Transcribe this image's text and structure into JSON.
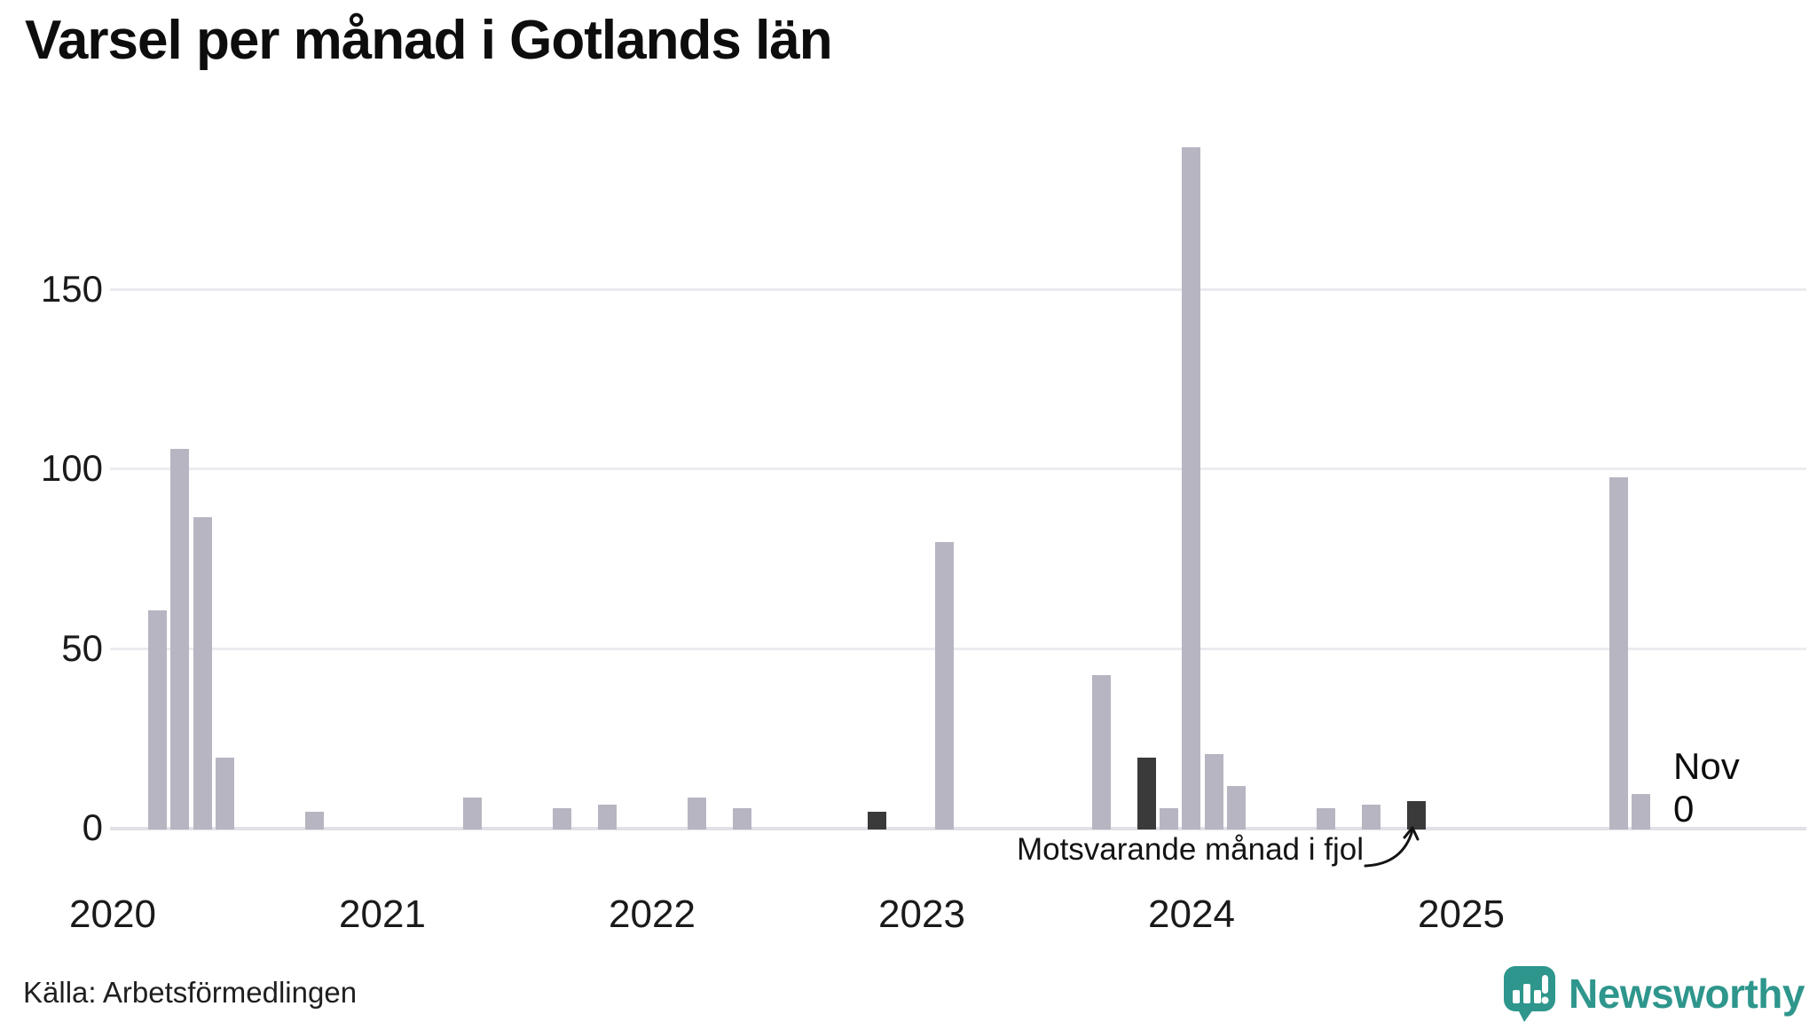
{
  "title": "Varsel per månad i Gotlands län",
  "source": "Källa: Arbetsförmedlingen",
  "annotation": {
    "text": "Motsvarande månad i fjol",
    "points_to_month": "2024-11"
  },
  "current_month_label": {
    "month": "Nov",
    "value": "0"
  },
  "branding": {
    "logo_text": "Newsworthy",
    "logo_icon": "bar-chart-speech-bubble-icon",
    "logo_color": "#2e968c"
  },
  "colors": {
    "bar": "#b7b5c1",
    "bar_highlight": "#3a3a3a",
    "gridline": "#ebebf0",
    "baseline": "#e1e1e7",
    "text": "#0d0d0d"
  },
  "chart_data": {
    "type": "bar",
    "title": "Varsel per månad i Gotlands län",
    "xlabel": "",
    "ylabel": "",
    "x_start": "2020-01",
    "x_end": "2025-11",
    "ylim": [
      0,
      190
    ],
    "yticks": [
      0,
      50,
      100,
      150
    ],
    "xticks": [
      "2020",
      "2021",
      "2022",
      "2023",
      "2024",
      "2025"
    ],
    "grid": true,
    "legend_position": "none",
    "series_note": "highlight=true marks 'Motsvarande månad i fjol' (November of earlier years) drawn in dark gray",
    "points": [
      {
        "month": "2020-03",
        "value": 61,
        "highlight": false
      },
      {
        "month": "2020-04",
        "value": 106,
        "highlight": false
      },
      {
        "month": "2020-05",
        "value": 87,
        "highlight": false
      },
      {
        "month": "2020-06",
        "value": 20,
        "highlight": false
      },
      {
        "month": "2020-10",
        "value": 5,
        "highlight": false
      },
      {
        "month": "2021-05",
        "value": 9,
        "highlight": false
      },
      {
        "month": "2021-09",
        "value": 6,
        "highlight": false
      },
      {
        "month": "2021-11",
        "value": 7,
        "highlight": false
      },
      {
        "month": "2022-03",
        "value": 9,
        "highlight": false
      },
      {
        "month": "2022-05",
        "value": 6,
        "highlight": false
      },
      {
        "month": "2022-11",
        "value": 5,
        "highlight": true
      },
      {
        "month": "2023-02",
        "value": 80,
        "highlight": false
      },
      {
        "month": "2023-09",
        "value": 43,
        "highlight": false
      },
      {
        "month": "2023-11",
        "value": 20,
        "highlight": true
      },
      {
        "month": "2023-12",
        "value": 6,
        "highlight": false
      },
      {
        "month": "2024-01",
        "value": 190,
        "highlight": false
      },
      {
        "month": "2024-02",
        "value": 21,
        "highlight": false
      },
      {
        "month": "2024-03",
        "value": 12,
        "highlight": false
      },
      {
        "month": "2024-07",
        "value": 6,
        "highlight": false
      },
      {
        "month": "2024-09",
        "value": 7,
        "highlight": false
      },
      {
        "month": "2024-11",
        "value": 8,
        "highlight": true
      },
      {
        "month": "2025-08",
        "value": 98,
        "highlight": false
      },
      {
        "month": "2025-09",
        "value": 10,
        "highlight": false
      },
      {
        "month": "2025-11",
        "value": 0,
        "highlight": false
      }
    ]
  }
}
